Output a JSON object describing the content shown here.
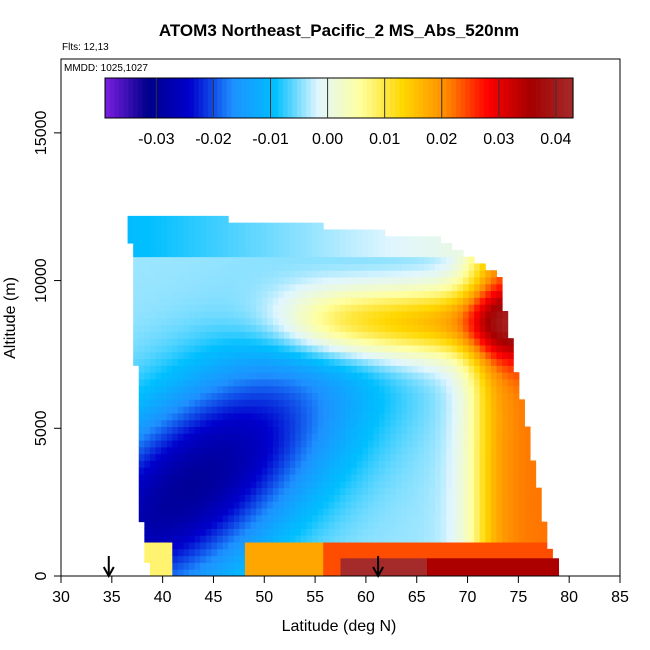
{
  "chart_data": {
    "type": "heatmap",
    "title": "ATOM3 Northeast_Pacific_2 MS_Abs_520nm",
    "flights_label": "Flts: 12,13",
    "date_label": "MMDD: 1025,1027",
    "xlabel": "Latitude (deg N)",
    "ylabel": "Altitude (m)",
    "xlim": [
      30,
      85
    ],
    "ylim": [
      0,
      17500
    ],
    "x_ticks": [
      "30",
      "35",
      "40",
      "45",
      "50",
      "55",
      "60",
      "65",
      "70",
      "75",
      "80",
      "85"
    ],
    "y_ticks": [
      "0",
      "5000",
      "10000",
      "15000"
    ],
    "colorbar": {
      "range": [
        -0.039,
        0.043
      ],
      "tick_values": [
        -0.03,
        -0.02,
        -0.01,
        0.0,
        0.01,
        0.02,
        0.03,
        0.04
      ],
      "tick_labels": [
        "-0.03",
        "-0.02",
        "-0.01",
        "0.00",
        "0.01",
        "0.02",
        "0.03",
        "0.04"
      ],
      "colors": [
        "#7b1fe0",
        "#00008b",
        "#0000cd",
        "#1e90ff",
        "#00bfff",
        "#e0f6ff",
        "#ffffa0",
        "#ffd700",
        "#ff8c00",
        "#ff0000",
        "#a50000",
        "#a52a2a"
      ]
    },
    "flight_path_region": {
      "vertices_latitude_altitude": [
        [
          36.5,
          12200
        ],
        [
          52,
          12000
        ],
        [
          67.5,
          11400
        ],
        [
          70,
          10800
        ],
        [
          73,
          10300
        ],
        [
          78,
          1000
        ],
        [
          79,
          0
        ],
        [
          39,
          0
        ],
        [
          38,
          1000
        ],
        [
          37,
          10800
        ],
        [
          36.5,
          12200
        ]
      ]
    },
    "surface_segments": [
      {
        "lat_start": 57.5,
        "lat_end": 66,
        "value": 0.043
      },
      {
        "lat_start": 66,
        "lat_end": 79,
        "value": 0.035
      }
    ],
    "arrow_markers_latitude": [
      34.7,
      61.2
    ]
  }
}
